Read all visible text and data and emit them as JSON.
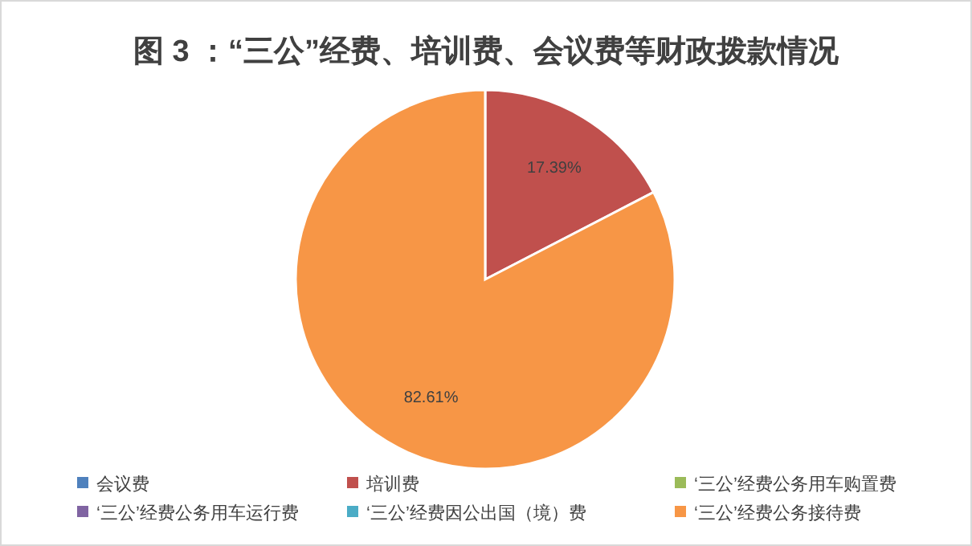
{
  "chart_data": {
    "type": "pie",
    "title": "图 3 ：“三公”经费、培训费、会议费等财政拨款情况",
    "categories": [
      "会议费",
      "培训费",
      "‘三公’经费公务用车购置费",
      "‘三公’经费公务用车运行费",
      "‘三公’经费因公出国（境）费",
      "‘三公’经费公务接待费"
    ],
    "values": [
      0,
      17.39,
      0,
      0,
      0,
      82.61
    ],
    "colors": [
      "#4f81bd",
      "#c0504d",
      "#9bbb59",
      "#8064a2",
      "#4bacc6",
      "#f79646"
    ],
    "value_labels": [
      null,
      "17.39%",
      null,
      null,
      null,
      "82.61%"
    ],
    "legend": "bottom"
  }
}
